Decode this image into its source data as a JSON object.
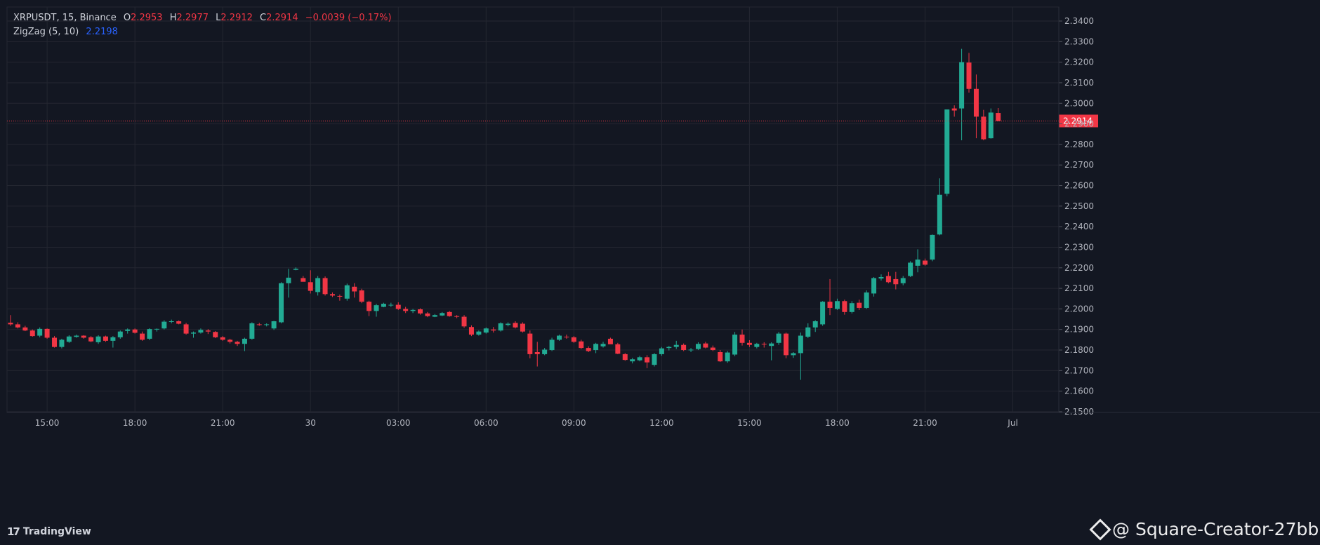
{
  "header": {
    "symbol": "XRPUSDT",
    "interval": "15",
    "exchange": "Binance",
    "o_label": "O",
    "o_value": "2.2953",
    "h_label": "H",
    "h_value": "2.2977",
    "l_label": "L",
    "l_value": "2.2912",
    "c_label": "C",
    "c_value": "2.2914",
    "change": "−0.0039 (−0.17%)"
  },
  "indicator": {
    "name": "ZigZag",
    "params": "(5, 10)",
    "value": "2.2198"
  },
  "footer": {
    "brand": "TradingView",
    "watermark": "@ Square-Creator-27bb5..."
  },
  "colors": {
    "background": "#131722",
    "grid": "#242731",
    "axis_text": "#b2b5be",
    "up": "#26a69a",
    "up_bright": "#22ab94",
    "down": "#f23645",
    "price_line": "#f23645",
    "zigzag": "#2962ff"
  },
  "chart_data": {
    "type": "candlestick",
    "y_axis": {
      "min": 2.15,
      "max": 2.34,
      "ticks": [
        "2.1500",
        "2.1600",
        "2.1700",
        "2.1800",
        "2.1900",
        "2.2000",
        "2.2100",
        "2.2200",
        "2.2300",
        "2.2400",
        "2.2500",
        "2.2600",
        "2.2700",
        "2.2800",
        "2.2900",
        "2.3000",
        "2.3100",
        "2.3200",
        "2.3300",
        "2.3400"
      ],
      "current_price": 2.2914,
      "current_price_label": "2.2914"
    },
    "x_axis": {
      "ticks": [
        {
          "label": "15:00",
          "index": 5
        },
        {
          "label": "18:00",
          "index": 17
        },
        {
          "label": "21:00",
          "index": 29
        },
        {
          "label": "30",
          "index": 41
        },
        {
          "label": "03:00",
          "index": 53
        },
        {
          "label": "06:00",
          "index": 65
        },
        {
          "label": "09:00",
          "index": 77
        },
        {
          "label": "12:00",
          "index": 89
        },
        {
          "label": "15:00",
          "index": 101
        },
        {
          "label": "18:00",
          "index": 113
        },
        {
          "label": "21:00",
          "index": 125
        },
        {
          "label": "Jul",
          "index": 137
        }
      ]
    },
    "candles": [
      [
        2.1933,
        2.197,
        2.1918,
        2.1925
      ],
      [
        2.1925,
        2.1935,
        2.1905,
        2.191
      ],
      [
        2.191,
        2.1918,
        2.1892,
        2.1895
      ],
      [
        2.1895,
        2.19,
        2.1865,
        2.1868
      ],
      [
        2.187,
        2.191,
        2.1862,
        2.1903
      ],
      [
        2.1903,
        2.1905,
        2.1855,
        2.186
      ],
      [
        2.186,
        2.1868,
        2.1812,
        2.1815
      ],
      [
        2.1815,
        2.1855,
        2.1808,
        2.185
      ],
      [
        2.184,
        2.1872,
        2.1835,
        2.1866
      ],
      [
        2.1864,
        2.1875,
        2.186,
        2.187
      ],
      [
        2.187,
        2.1872,
        2.1855,
        2.186
      ],
      [
        2.1862,
        2.1868,
        2.1838,
        2.1842
      ],
      [
        2.1838,
        2.1872,
        2.183,
        2.1866
      ],
      [
        2.1866,
        2.187,
        2.184,
        2.1845
      ],
      [
        2.1845,
        2.1868,
        2.1812,
        2.1862
      ],
      [
        2.1862,
        2.1895,
        2.1855,
        2.189
      ],
      [
        2.1893,
        2.1905,
        2.188,
        2.19
      ],
      [
        2.19,
        2.1905,
        2.188,
        2.1884
      ],
      [
        2.188,
        2.189,
        2.1845,
        2.185
      ],
      [
        2.1855,
        2.1906,
        2.1848,
        2.1902
      ],
      [
        2.19,
        2.1905,
        2.189,
        2.1903
      ],
      [
        2.1905,
        2.1945,
        2.19,
        2.1938
      ],
      [
        2.1938,
        2.1948,
        2.193,
        2.194
      ],
      [
        2.194,
        2.1944,
        2.1925,
        2.1928
      ],
      [
        2.1925,
        2.1932,
        2.1875,
        2.188
      ],
      [
        2.188,
        2.189,
        2.186,
        2.1885
      ],
      [
        2.1885,
        2.1905,
        2.188,
        2.1898
      ],
      [
        2.1895,
        2.1902,
        2.1878,
        2.189
      ],
      [
        2.1888,
        2.1892,
        2.1858,
        2.1862
      ],
      [
        2.1862,
        2.1868,
        2.1845,
        2.185
      ],
      [
        2.185,
        2.1855,
        2.1832,
        2.184
      ],
      [
        2.184,
        2.1845,
        2.182,
        2.183
      ],
      [
        2.183,
        2.186,
        2.1795,
        2.1855
      ],
      [
        2.1855,
        2.1935,
        2.185,
        2.193
      ],
      [
        2.1925,
        2.1932,
        2.1918,
        2.1922
      ],
      [
        2.1922,
        2.193,
        2.1915,
        2.1925
      ],
      [
        2.1905,
        2.1942,
        2.1898,
        2.194
      ],
      [
        2.1935,
        2.213,
        2.193,
        2.2125
      ],
      [
        2.2125,
        2.2195,
        2.2055,
        2.2152
      ],
      [
        2.219,
        2.2202,
        2.2188,
        2.2195
      ],
      [
        2.215,
        2.216,
        2.214,
        2.2132
      ],
      [
        2.213,
        2.2188,
        2.2075,
        2.2088
      ],
      [
        2.2082,
        2.216,
        2.2065,
        2.215
      ],
      [
        2.215,
        2.2158,
        2.2065,
        2.2072
      ],
      [
        2.2072,
        2.208,
        2.2058,
        2.2065
      ],
      [
        2.2063,
        2.207,
        2.204,
        2.2062
      ],
      [
        2.205,
        2.2123,
        2.204,
        2.2115
      ],
      [
        2.2108,
        2.2125,
        2.2055,
        2.2085
      ],
      [
        2.209,
        2.2098,
        2.2028,
        2.2035
      ],
      [
        2.2035,
        2.204,
        2.1965,
        2.199
      ],
      [
        2.199,
        2.2025,
        2.1962,
        2.2018
      ],
      [
        2.201,
        2.203,
        2.2008,
        2.2025
      ],
      [
        2.2018,
        2.203,
        2.201,
        2.202
      ],
      [
        2.202,
        2.2032,
        2.1995,
        2.2
      ],
      [
        2.2,
        2.201,
        2.198,
        2.199
      ],
      [
        2.199,
        2.2,
        2.198,
        2.1995
      ],
      [
        2.1998,
        2.2003,
        2.1972,
        2.1978
      ],
      [
        2.1978,
        2.1985,
        2.196,
        2.1965
      ],
      [
        2.1962,
        2.1975,
        2.196,
        2.197
      ],
      [
        2.1968,
        2.1985,
        2.1965,
        2.198
      ],
      [
        2.1985,
        2.199,
        2.1962,
        2.1965
      ],
      [
        2.1965,
        2.197,
        2.1955,
        2.1962
      ],
      [
        2.1962,
        2.197,
        2.1908,
        2.1915
      ],
      [
        2.1912,
        2.192,
        2.1868,
        2.1875
      ],
      [
        2.1875,
        2.1895,
        2.187,
        2.189
      ],
      [
        2.1885,
        2.191,
        2.188,
        2.1905
      ],
      [
        2.19,
        2.1912,
        2.1885,
        2.1895
      ],
      [
        2.1895,
        2.1935,
        2.189,
        2.193
      ],
      [
        2.1922,
        2.1935,
        2.1915,
        2.1928
      ],
      [
        2.1932,
        2.194,
        2.1905,
        2.191
      ],
      [
        2.1928,
        2.1935,
        2.1885,
        2.189
      ],
      [
        2.188,
        2.1895,
        2.176,
        2.178
      ],
      [
        2.179,
        2.184,
        2.172,
        2.178
      ],
      [
        2.178,
        2.181,
        2.1775,
        2.1802
      ],
      [
        2.18,
        2.186,
        2.1795,
        2.185
      ],
      [
        2.185,
        2.1875,
        2.1845,
        2.187
      ],
      [
        2.1865,
        2.1875,
        2.1855,
        2.1862
      ],
      [
        2.1862,
        2.1868,
        2.1835,
        2.184
      ],
      [
        2.1842,
        2.185,
        2.1805,
        2.181
      ],
      [
        2.181,
        2.1818,
        2.179,
        2.1795
      ],
      [
        2.18,
        2.1835,
        2.1785,
        2.183
      ],
      [
        2.1818,
        2.184,
        2.1812,
        2.183
      ],
      [
        2.1855,
        2.186,
        2.1845,
        2.1828
      ],
      [
        2.1828,
        2.1835,
        2.178,
        2.1782
      ],
      [
        2.178,
        2.1785,
        2.1748,
        2.1752
      ],
      [
        2.1745,
        2.1762,
        2.1735,
        2.1755
      ],
      [
        2.175,
        2.1772,
        2.1745,
        2.1765
      ],
      [
        2.1765,
        2.1775,
        2.1712,
        2.174
      ],
      [
        2.1728,
        2.1785,
        2.172,
        2.178
      ],
      [
        2.178,
        2.1815,
        2.1772,
        2.1808
      ],
      [
        2.181,
        2.182,
        2.1798,
        2.1815
      ],
      [
        2.1815,
        2.1845,
        2.1805,
        2.1825
      ],
      [
        2.1825,
        2.1832,
        2.1795,
        2.18
      ],
      [
        2.18,
        2.181,
        2.179,
        2.1802
      ],
      [
        2.1805,
        2.1838,
        2.18,
        2.183
      ],
      [
        2.1832,
        2.184,
        2.1808,
        2.1812
      ],
      [
        2.1812,
        2.1822,
        2.1795,
        2.18
      ],
      [
        2.179,
        2.18,
        2.1742,
        2.1745
      ],
      [
        2.1745,
        2.1795,
        2.1738,
        2.1788
      ],
      [
        2.1778,
        2.1888,
        2.177,
        2.1875
      ],
      [
        2.1875,
        2.19,
        2.1822,
        2.1835
      ],
      [
        2.1835,
        2.1848,
        2.1815,
        2.1825
      ],
      [
        2.1815,
        2.1835,
        2.1808,
        2.183
      ],
      [
        2.183,
        2.1838,
        2.1812,
        2.1828
      ],
      [
        2.182,
        2.1838,
        2.175,
        2.1832
      ],
      [
        2.1835,
        2.1888,
        2.1825,
        2.188
      ],
      [
        2.188,
        2.1885,
        2.176,
        2.1775
      ],
      [
        2.1775,
        2.179,
        2.1762,
        2.1785
      ],
      [
        2.1785,
        2.1885,
        2.1655,
        2.187
      ],
      [
        2.1865,
        2.193,
        2.1858,
        2.191
      ],
      [
        2.191,
        2.1945,
        2.1888,
        2.194
      ],
      [
        2.1925,
        2.2038,
        2.1918,
        2.2035
      ],
      [
        2.2035,
        2.2145,
        2.197,
        2.2005
      ],
      [
        2.2,
        2.205,
        2.1995,
        2.2038
      ],
      [
        2.2038,
        2.2045,
        2.1972,
        2.1985
      ],
      [
        2.1985,
        2.2038,
        2.1978,
        2.2028
      ],
      [
        2.203,
        2.2045,
        2.1995,
        2.2005
      ],
      [
        2.2005,
        2.209,
        2.2,
        2.208
      ],
      [
        2.2075,
        2.2155,
        2.206,
        2.215
      ],
      [
        2.2148,
        2.2168,
        2.2138,
        2.2155
      ],
      [
        2.216,
        2.218,
        2.2125,
        2.213
      ],
      [
        2.2145,
        2.218,
        2.2095,
        2.212
      ],
      [
        2.2125,
        2.216,
        2.2115,
        2.215
      ],
      [
        2.216,
        2.2232,
        2.2155,
        2.2225
      ],
      [
        2.221,
        2.229,
        2.2178,
        2.224
      ],
      [
        2.2235,
        2.2245,
        2.221,
        2.2215
      ],
      [
        2.224,
        2.2362,
        2.2232,
        2.236
      ],
      [
        2.2362,
        2.2635,
        2.2358,
        2.2555
      ],
      [
        2.256,
        2.297,
        2.2548,
        2.297
      ],
      [
        2.2975,
        2.299,
        2.2935,
        2.2965
      ],
      [
        2.2975,
        2.3265,
        2.282,
        2.32
      ],
      [
        2.3198,
        2.3245,
        2.3052,
        2.307
      ],
      [
        2.307,
        2.314,
        2.283,
        2.2935
      ],
      [
        2.2935,
        2.2968,
        2.282,
        2.2825
      ],
      [
        2.283,
        2.2975,
        2.2828,
        2.2955
      ],
      [
        2.2953,
        2.2977,
        2.2912,
        2.2914
      ]
    ]
  }
}
